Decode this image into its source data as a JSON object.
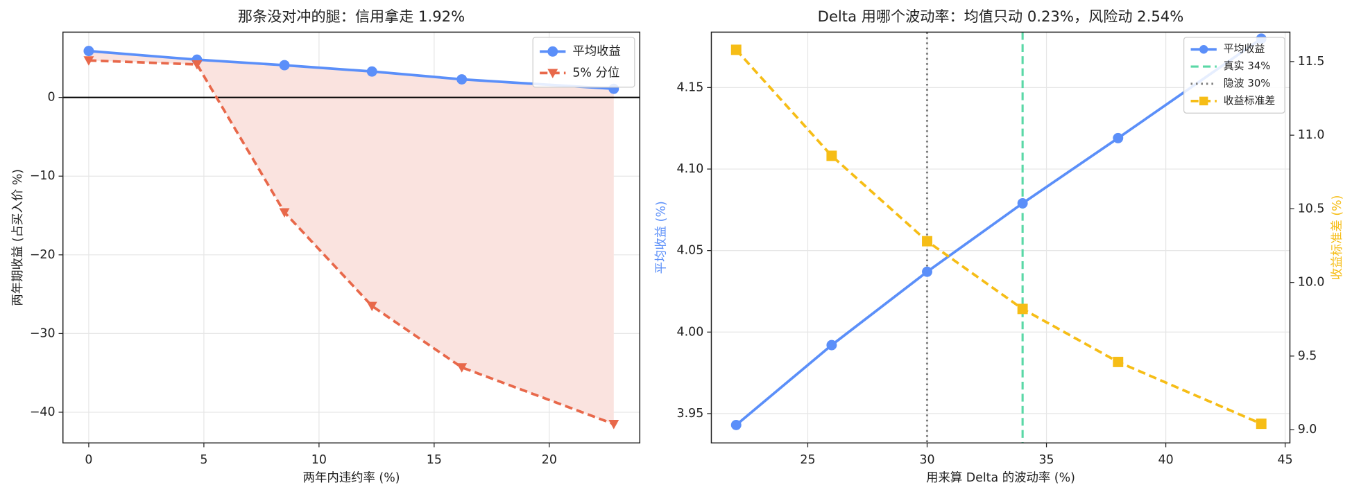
{
  "chart_data": [
    {
      "type": "line",
      "title": "那条没对冲的腿：信用拿走 1.92%",
      "xlabel": "两年内违约率 (%)",
      "ylabel": "两年期收益 (占买入价 %)",
      "x": [
        0,
        4.7,
        8.5,
        12.3,
        16.2,
        22.8
      ],
      "series": [
        {
          "name": "平均收益",
          "color": "#5b8ff9",
          "marker": "circle",
          "dash": "solid",
          "values": [
            5.9,
            4.8,
            4.1,
            3.3,
            2.3,
            1.1
          ]
        },
        {
          "name": "5% 分位",
          "color": "#e8684a",
          "marker": "triangle-down",
          "dash": "dashed",
          "values": [
            4.7,
            4.2,
            -14.6,
            -26.5,
            -34.3,
            -41.5
          ]
        }
      ],
      "fill_between": true,
      "fill_color": "#fae3df",
      "hlines": [
        {
          "y": 0,
          "color": "#000000"
        }
      ],
      "xlim": [
        -1.12,
        23.93
      ],
      "xticks": [
        0,
        5,
        10,
        15,
        20
      ],
      "ylim": [
        -43.9,
        8.3
      ],
      "yticks": [
        {
          "value": -40,
          "label": "−40"
        },
        {
          "value": -30,
          "label": "−30"
        },
        {
          "value": -20,
          "label": "−20"
        },
        {
          "value": -10,
          "label": "−10"
        },
        0
      ],
      "grid": true,
      "legend": "upper right"
    },
    {
      "type": "line",
      "title": "Delta 用哪个波动率：均值只动 0.23%，风险动 2.54%",
      "xlabel": "用来算 Delta 的波动率 (%)",
      "ylabel": "平均收益 (%)",
      "y2label": "收益标准差 (%)",
      "x": [
        22,
        26,
        30,
        34,
        38,
        44
      ],
      "series": [
        {
          "name": "平均收益",
          "color": "#5b8ff9",
          "marker": "circle",
          "dash": "solid",
          "values": [
            3.943,
            3.992,
            4.037,
            4.079,
            4.119,
            4.18
          ]
        },
        {
          "name": "收益标准差",
          "color": "#f6bd16",
          "marker": "square",
          "dash": "dashed",
          "axis": "y2",
          "values": [
            11.58,
            10.86,
            10.28,
            9.82,
            9.46,
            9.04
          ]
        }
      ],
      "vlines": [
        {
          "x": 34,
          "name": "真实 34%",
          "color": "#5ad8a6",
          "dash": "dashed"
        },
        {
          "x": 30,
          "name": "隐波 30%",
          "color": "#808080",
          "dash": "dotted"
        }
      ],
      "xlim": [
        20.96,
        45.2
      ],
      "xticks": [
        25,
        30,
        35,
        40,
        45
      ],
      "ylim": [
        3.932,
        4.184
      ],
      "yticks": [
        3.95,
        {
          "value": 4.0,
          "label": "4.00"
        },
        4.05,
        {
          "value": 4.1,
          "label": "4.10"
        },
        4.15
      ],
      "y2lim": [
        8.91,
        11.7
      ],
      "y2ticks": [
        {
          "value": 9,
          "label": "9.0"
        },
        9.5,
        {
          "value": 10,
          "label": "10.0"
        },
        10.5,
        {
          "value": 11,
          "label": "11.0"
        },
        11.5
      ],
      "grid": true,
      "legend": "upper right"
    }
  ]
}
